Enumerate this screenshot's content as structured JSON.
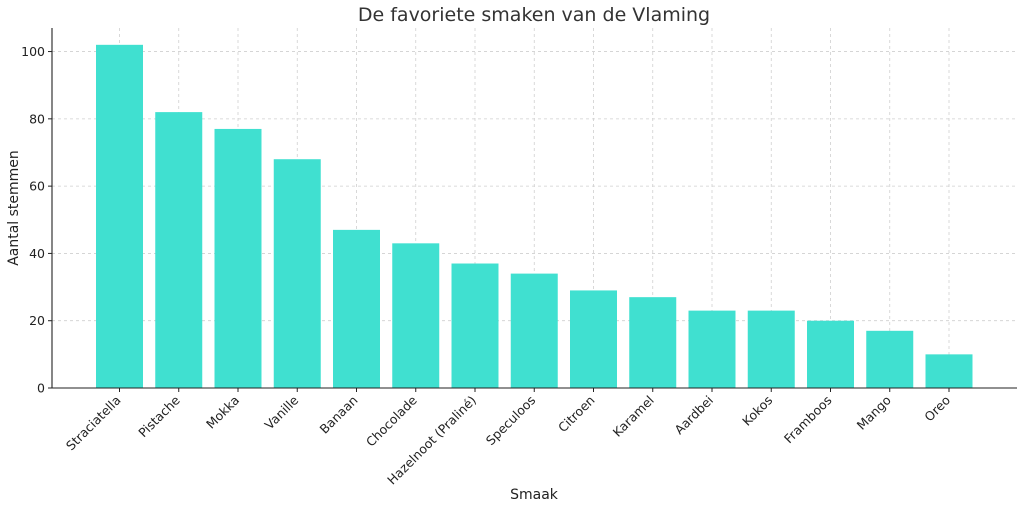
{
  "chart_data": {
    "type": "bar",
    "title": "De favoriete smaken van de Vlaming",
    "xlabel": "Smaak",
    "ylabel": "Aantal stemmen",
    "categories": [
      "Straciatella",
      "Pistache",
      "Mokka",
      "Vanille",
      "Banaan",
      "Chocolade",
      "Hazelnoot (Praliné)",
      "Speculoos",
      "Citroen",
      "Karamel",
      "Aardbei",
      "Kokos",
      "Framboos",
      "Mango",
      "Oreo"
    ],
    "values": [
      102,
      82,
      77,
      68,
      47,
      43,
      37,
      34,
      29,
      27,
      23,
      23,
      20,
      17,
      10
    ],
    "ylim": [
      0,
      107
    ],
    "yticks": [
      0,
      20,
      40,
      60,
      80,
      100
    ],
    "grid": true,
    "bar_color": "#40E0D0"
  }
}
